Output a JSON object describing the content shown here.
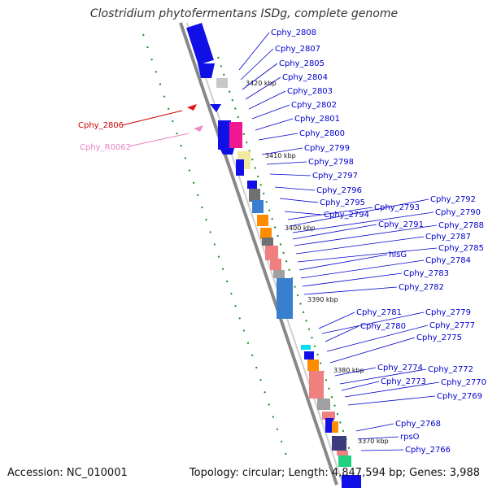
{
  "title": "Clostridium phytofermentans ISDg, complete genome",
  "accession": "Accession: NC_010001",
  "topology": "Topology: circular; Length: 4,847,594 bp; Genes: 3,988",
  "ruler_labels": [
    "3420 kbp",
    "3410 kbp",
    "3400 kbp",
    "3390 kbp",
    "3380 kbp",
    "3370 kbp"
  ],
  "colors": {
    "forward_gene": "#1010e6",
    "reverse_gene_red": "#e81010",
    "reverse_gene_pink": "#f08bc8",
    "label_blue": "#0000cc",
    "label_red": "#cc0000",
    "label_pink": "#e884c4",
    "backbone": "#888888",
    "tick_green": "#1a8c1a"
  },
  "genes_reverse": [
    {
      "label": "Cphy_2806",
      "color": "#cc0000"
    },
    {
      "label": "Cphy_R0062",
      "color": "#e884c4"
    }
  ],
  "genes_forward": [
    "Cphy_2808",
    "Cphy_2807",
    "Cphy_2805",
    "Cphy_2804",
    "Cphy_2803",
    "Cphy_2802",
    "Cphy_2801",
    "Cphy_2800",
    "Cphy_2799",
    "Cphy_2798",
    "Cphy_2797",
    "Cphy_2796",
    "Cphy_2795",
    "Cphy_2794",
    "Cphy_2793",
    "Cphy_2792",
    "Cphy_2790",
    "Cphy_2791",
    "Cphy_2788",
    "Cphy_2787",
    "Cphy_2785",
    "hisG",
    "Cphy_2784",
    "Cphy_2783",
    "Cphy_2782",
    "Cphy_2781",
    "Cphy_2779",
    "Cphy_2780",
    "Cphy_2777",
    "Cphy_2775",
    "Cphy_2774",
    "Cphy_2772",
    "Cphy_2773",
    "Cphy_2770",
    "Cphy_2769",
    "Cphy_2768",
    "rpsO",
    "Cphy_2766"
  ]
}
